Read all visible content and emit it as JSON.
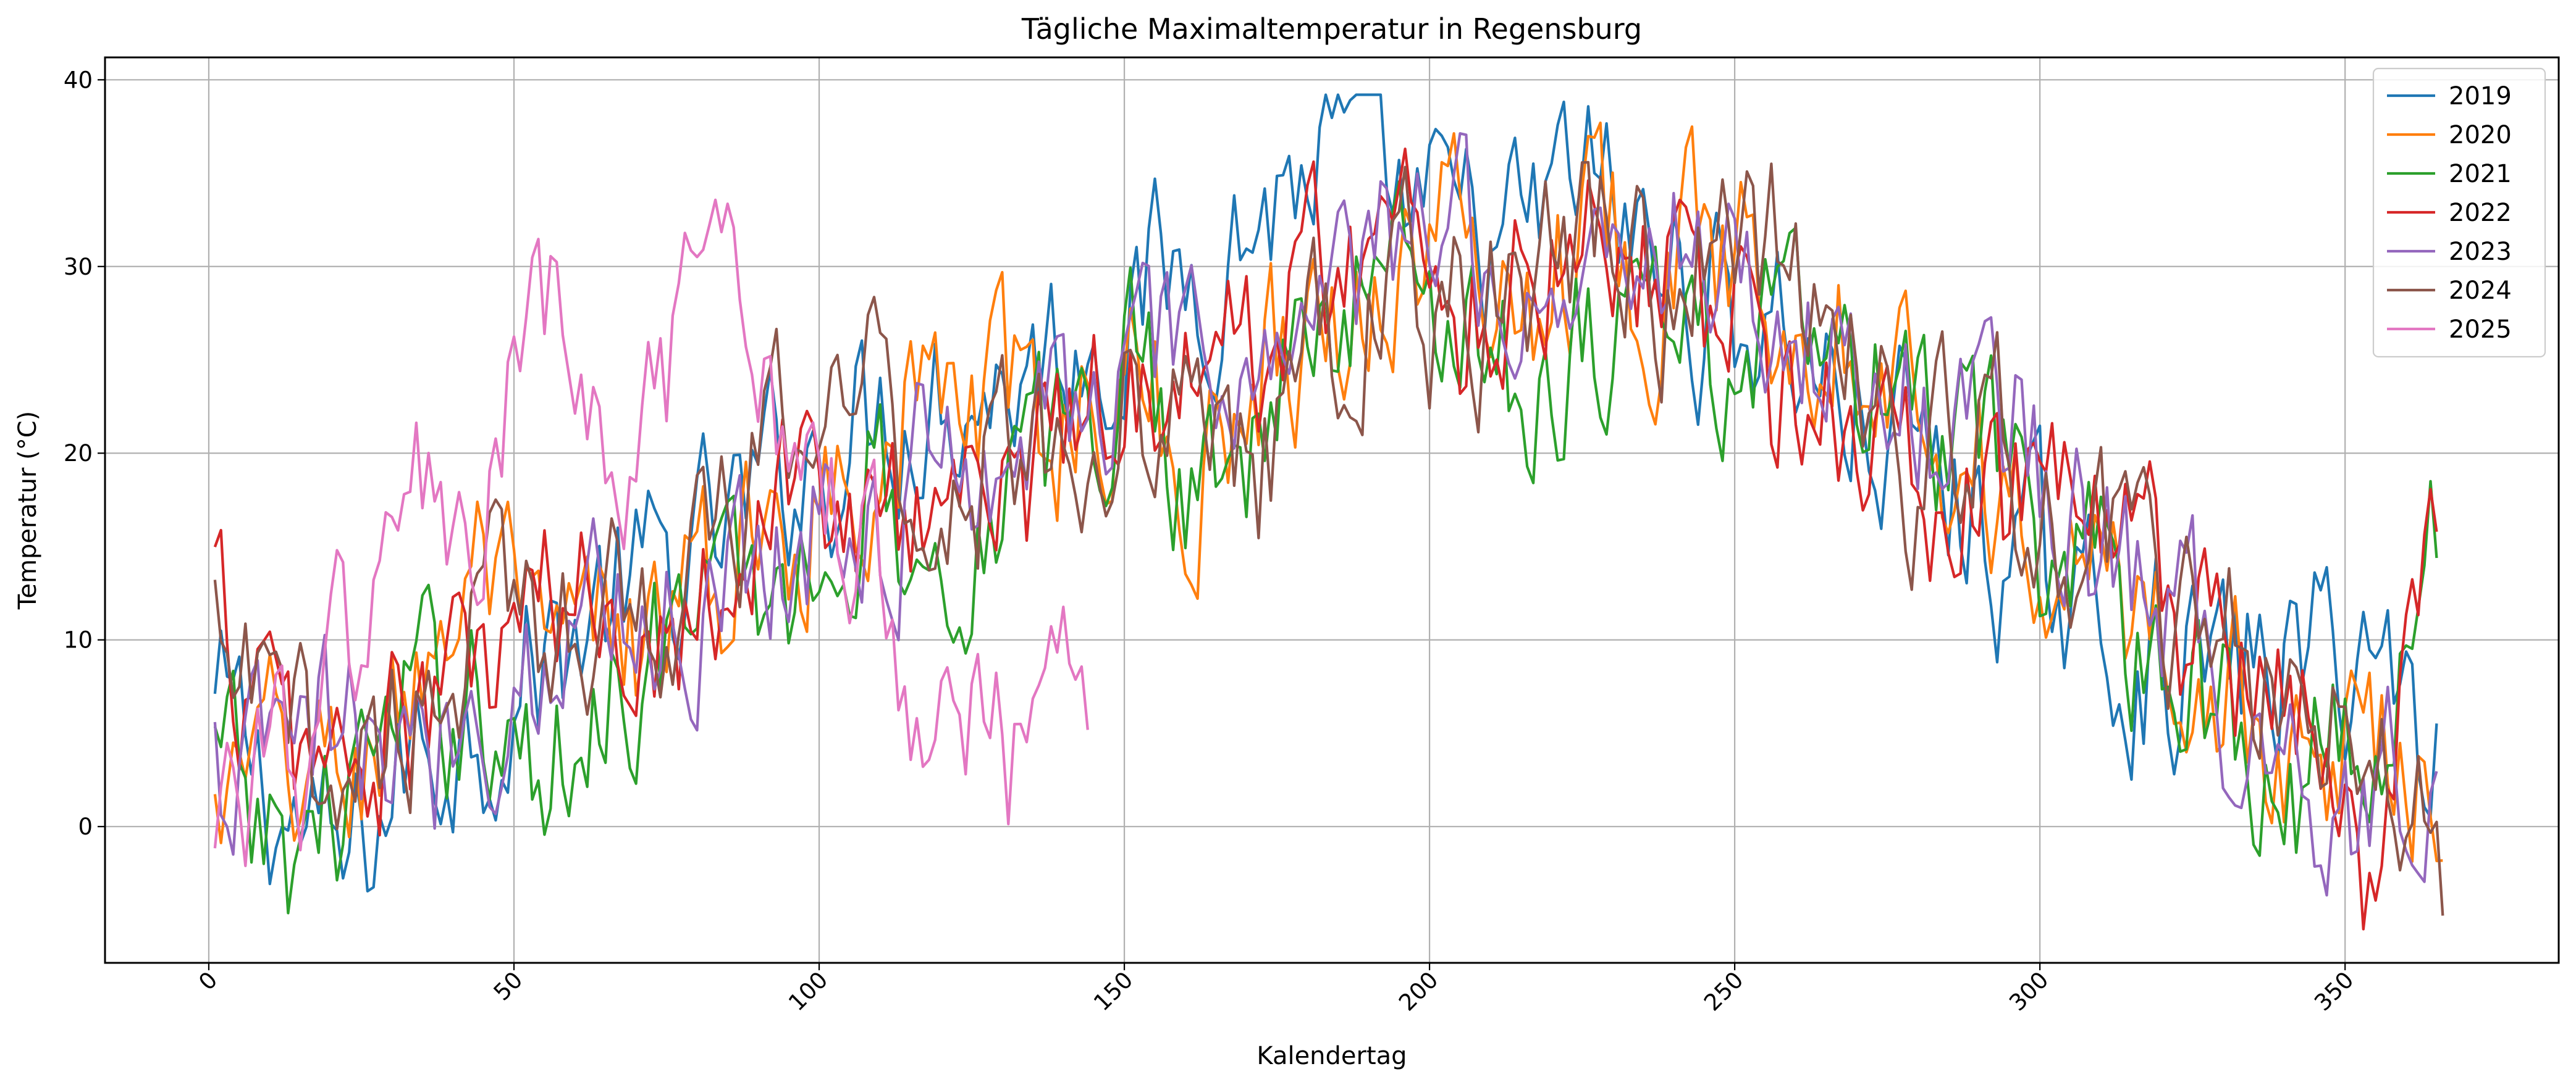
{
  "chart_data": {
    "type": "line",
    "title": "Tägliche Maximaltemperatur in Regensburg",
    "xlabel": "Kalendertag",
    "ylabel": "Temperatur (°C)",
    "xlim": [
      -17,
      385
    ],
    "ylim": [
      -7.3,
      41.2
    ],
    "xticks": [
      0,
      50,
      100,
      150,
      200,
      250,
      300,
      350
    ],
    "yticks": [
      0,
      10,
      20,
      30,
      40
    ],
    "grid": true,
    "legend": "top-right",
    "series": [
      {
        "name": "2019",
        "color": "#1f77b4",
        "x_start": 1,
        "x_end": 365,
        "anchors": [
          6,
          1,
          -3,
          4,
          6,
          9,
          12,
          13,
          16,
          20,
          22,
          24,
          24,
          26,
          28,
          30,
          33,
          36,
          33,
          31,
          31,
          35,
          30,
          28,
          27,
          22,
          20,
          16,
          13,
          10,
          9,
          8,
          9,
          10,
          4
        ]
      },
      {
        "name": "2020",
        "color": "#ff7f0e",
        "x_start": 1,
        "x_end": 366,
        "anchors": [
          0,
          3,
          2,
          8,
          14,
          7,
          10,
          11,
          14,
          17,
          21,
          23,
          22,
          22,
          24,
          18,
          26,
          27,
          30,
          32,
          28,
          33,
          30,
          31,
          29,
          28,
          24,
          19,
          14,
          12,
          10,
          6,
          3,
          5,
          4
        ]
      },
      {
        "name": "2021",
        "color": "#2ca02c",
        "x_start": 1,
        "x_end": 365,
        "anchors": [
          3,
          -2,
          2,
          5,
          8,
          1,
          9,
          10,
          12,
          13,
          19,
          14,
          18,
          19,
          26,
          19,
          22,
          26,
          31,
          29,
          23,
          27,
          28,
          25,
          26,
          24,
          22,
          19,
          15,
          12,
          9,
          5,
          2,
          4,
          14
        ]
      },
      {
        "name": "2022",
        "color": "#d62728",
        "x_start": 1,
        "x_end": 365,
        "anchors": [
          12,
          4,
          3,
          5,
          8,
          11,
          12,
          12,
          15,
          20,
          14,
          19,
          17,
          21,
          26,
          23,
          27,
          30,
          32,
          28,
          30,
          34,
          31,
          28,
          23,
          22,
          18,
          16,
          18,
          14,
          12,
          7,
          4,
          -2,
          14
        ]
      },
      {
        "name": "2023",
        "color": "#9467bd",
        "x_start": 1,
        "x_end": 365,
        "anchors": [
          2,
          3,
          5,
          2,
          7,
          9,
          13,
          11,
          14,
          17,
          16,
          19,
          21,
          22,
          25,
          23,
          25,
          28,
          30,
          34,
          28,
          29,
          33,
          30,
          27,
          25,
          22,
          23,
          19,
          14,
          12,
          6,
          3,
          2,
          4
        ]
      },
      {
        "name": "2024",
        "color": "#8c564b",
        "x_start": 1,
        "x_end": 366,
        "anchors": [
          9,
          4,
          3,
          7,
          10,
          12,
          13,
          12,
          16,
          22,
          25,
          17,
          20,
          22,
          23,
          22,
          20,
          26,
          29,
          27,
          29,
          32,
          30,
          29,
          31,
          26,
          18,
          21,
          17,
          14,
          12,
          8,
          5,
          3,
          -2
        ]
      },
      {
        "name": "2025",
        "color": "#e377c2",
        "x_start": 1,
        "x_end": 144,
        "anchors": [
          3,
          2,
          4,
          5,
          2,
          9,
          12,
          17,
          18,
          15,
          14,
          19,
          24,
          27,
          24,
          19,
          19,
          21,
          24,
          26,
          27,
          25,
          23,
          22,
          18,
          16,
          14,
          9,
          10,
          8,
          6,
          4,
          4,
          6,
          3
        ]
      }
    ]
  }
}
